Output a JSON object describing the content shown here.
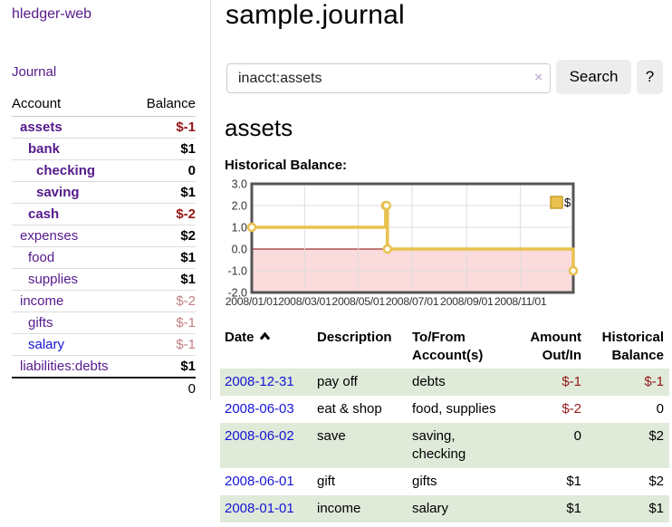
{
  "colors": {
    "link_purple": "#551a8b",
    "link_blue": "#1515d6",
    "negative_strong": "#941717",
    "negative_faint": "#c07f80",
    "row_shade_green": "#dfead9",
    "chart_gold": "#e8c14e",
    "chart_gold_dark": "#c79f2b",
    "chart_negative_pink": "#fbdbdb",
    "zero_line": "#8b0000",
    "button_bg": "#ededed"
  },
  "sidebar": {
    "brand": "hledger-web",
    "nav": {
      "journal": "Journal"
    },
    "accounts_table": {
      "headers": [
        "Account",
        "Balance"
      ],
      "accounts": [
        {
          "name": "assets",
          "indent": 1,
          "bold": true,
          "link_color": "purple",
          "balance": "$-1",
          "balance_class": "neg-strong"
        },
        {
          "name": "bank",
          "indent": 2,
          "bold": true,
          "link_color": "purple",
          "balance": "$1",
          "balance_class": "strong"
        },
        {
          "name": "checking",
          "indent": 3,
          "bold": true,
          "link_color": "purple",
          "balance": "0",
          "balance_class": "strong"
        },
        {
          "name": "saving",
          "indent": 3,
          "bold": true,
          "link_color": "purple",
          "balance": "$1",
          "balance_class": "strong"
        },
        {
          "name": "cash",
          "indent": 2,
          "bold": true,
          "link_color": "purple",
          "balance": "$-2",
          "balance_class": "neg-strong"
        },
        {
          "name": "expenses",
          "indent": 1,
          "bold": false,
          "link_color": "purple",
          "balance": "$2",
          "balance_class": "strong"
        },
        {
          "name": "food",
          "indent": 2,
          "bold": false,
          "link_color": "purple",
          "balance": "$1",
          "balance_class": "strong"
        },
        {
          "name": "supplies",
          "indent": 2,
          "bold": false,
          "link_color": "purple",
          "balance": "$1",
          "balance_class": "strong"
        },
        {
          "name": "income",
          "indent": 1,
          "bold": false,
          "link_color": "purple",
          "balance": "$-2",
          "balance_class": "neg-faint"
        },
        {
          "name": "gifts",
          "indent": 2,
          "bold": false,
          "link_color": "purple",
          "balance": "$-1",
          "balance_class": "neg-faint"
        },
        {
          "name": "salary",
          "indent": 2,
          "bold": false,
          "link_color": "blue",
          "balance": "$-1",
          "balance_class": "neg-faint"
        },
        {
          "name": "liabilities:debts",
          "indent": 1,
          "bold": false,
          "link_color": "purple",
          "balance": "$1",
          "balance_class": "strong"
        }
      ],
      "total": "0"
    }
  },
  "main": {
    "title": "sample.journal",
    "search": {
      "value": "inacct:assets",
      "clear_icon": "×",
      "button": "Search",
      "help_button": "?"
    },
    "account_heading": "assets",
    "chart_label": "Historical Balance:"
  },
  "chart_data": {
    "type": "line",
    "step": true,
    "title": "Historical Balance:",
    "series": [
      {
        "name": "$",
        "x": [
          "2008-01-01",
          "2008-06-01",
          "2008-06-02",
          "2008-06-03",
          "2008-12-31"
        ],
        "values": [
          1,
          2,
          2,
          0,
          -1
        ],
        "color": "#e8c14e"
      }
    ],
    "xlim": [
      "2008-01-01",
      "2008-12-31"
    ],
    "ylim": [
      -2,
      3
    ],
    "yticks": [
      3,
      2,
      1,
      0,
      -1,
      -2
    ],
    "ytick_labels": [
      "3.0",
      "2.0",
      "1.0",
      "0.0",
      "-1.0",
      "-2.0"
    ],
    "xtick_labels": [
      "2008/01/01",
      "2008/03/01",
      "2008/05/01",
      "2008/07/01",
      "2008/09/01",
      "2008/11/01"
    ],
    "grid": true,
    "legend_position": "top-right",
    "marker": "circle-open",
    "negative_region_fill": "#fbdbdb",
    "zero_line_color": "#8b0000"
  },
  "register": {
    "headers": [
      {
        "line1": "Date",
        "line2": "",
        "align": "left",
        "sort": "asc"
      },
      {
        "line1": "Description",
        "line2": "",
        "align": "left"
      },
      {
        "line1": "To/From",
        "line2": "Account(s)",
        "align": "left"
      },
      {
        "line1": "Amount",
        "line2": "Out/In",
        "align": "right"
      },
      {
        "line1": "Historical",
        "line2": "Balance",
        "align": "right"
      }
    ],
    "rows": [
      {
        "date": "2008-12-31",
        "description": "pay off",
        "accounts": "debts",
        "amount": "$-1",
        "amount_negative": true,
        "balance": "$-1",
        "balance_negative": true,
        "shaded": true
      },
      {
        "date": "2008-06-03",
        "description": "eat & shop",
        "accounts": "food, supplies",
        "amount": "$-2",
        "amount_negative": true,
        "balance": "0",
        "balance_negative": false,
        "shaded": false
      },
      {
        "date": "2008-06-02",
        "description": "save",
        "accounts": "saving, checking",
        "amount": "0",
        "amount_negative": false,
        "balance": "$2",
        "balance_negative": false,
        "shaded": true
      },
      {
        "date": "2008-06-01",
        "description": "gift",
        "accounts": "gifts",
        "amount": "$1",
        "amount_negative": false,
        "balance": "$2",
        "balance_negative": false,
        "shaded": false
      },
      {
        "date": "2008-01-01",
        "description": "income",
        "accounts": "salary",
        "amount": "$1",
        "amount_negative": false,
        "balance": "$1",
        "balance_negative": false,
        "shaded": true
      }
    ]
  }
}
